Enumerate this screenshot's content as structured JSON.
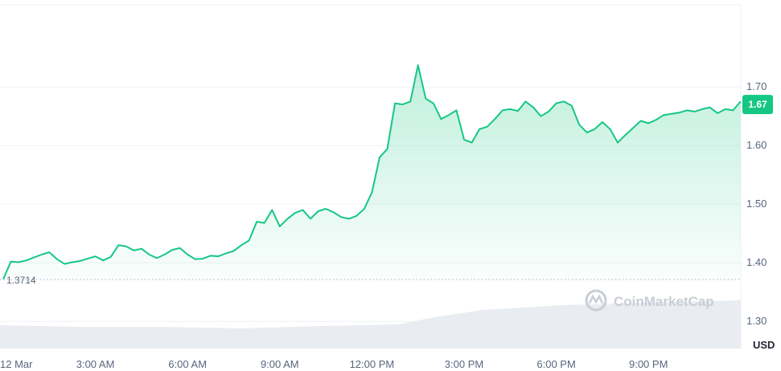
{
  "chart_data": {
    "type": "area",
    "title": "",
    "xlabel": "",
    "ylabel": "USD",
    "ylim": [
      1.24,
      1.8
    ],
    "grid": true,
    "y_ticks": [
      "1.70",
      "1.60",
      "1.50",
      "1.40",
      "1.30"
    ],
    "x_ticks": [
      "12 Mar",
      "3:00 AM",
      "6:00 AM",
      "9:00 AM",
      "12:00 PM",
      "3:00 PM",
      "6:00 PM",
      "9:00 PM"
    ],
    "baseline": {
      "value": 1.3714,
      "label": "1.3714"
    },
    "current_price": {
      "value": 1.67,
      "label": "1.67"
    },
    "series": [
      {
        "x_hours": [
          0,
          0.25,
          0.5,
          0.75,
          1,
          1.25,
          1.5,
          1.75,
          2,
          2.25,
          2.5,
          2.75,
          3,
          3.25,
          3.5,
          3.75,
          4,
          4.25,
          4.5,
          4.75,
          5,
          5.25,
          5.5,
          5.75,
          6,
          6.25,
          6.5,
          6.75,
          7,
          7.25,
          7.5,
          7.75,
          8,
          8.25,
          8.5,
          8.75,
          9,
          9.25,
          9.5,
          9.75,
          10,
          10.25,
          10.5,
          10.75,
          11,
          11.25,
          11.5,
          11.75,
          12,
          12.25,
          12.5,
          12.75,
          13,
          13.25,
          13.5,
          13.75,
          14,
          14.25,
          14.5,
          14.75,
          15,
          15.25,
          15.5,
          15.75,
          16,
          16.25,
          16.5,
          16.75,
          17,
          17.25,
          17.5,
          17.75,
          18,
          18.25,
          18.5,
          18.75,
          19,
          19.25,
          19.5,
          19.75,
          20,
          20.25,
          20.5,
          20.75,
          21,
          21.25,
          21.5,
          21.75,
          22,
          22.25,
          22.5,
          22.75,
          23,
          23.25,
          23.5,
          23.75,
          24
        ],
        "values": [
          1.372,
          1.402,
          1.401,
          1.404,
          1.409,
          1.414,
          1.418,
          1.406,
          1.398,
          1.401,
          1.403,
          1.407,
          1.411,
          1.404,
          1.41,
          1.43,
          1.428,
          1.421,
          1.424,
          1.414,
          1.408,
          1.414,
          1.422,
          1.425,
          1.414,
          1.406,
          1.407,
          1.412,
          1.411,
          1.416,
          1.42,
          1.43,
          1.438,
          1.47,
          1.468,
          1.49,
          1.462,
          1.475,
          1.485,
          1.49,
          1.475,
          1.488,
          1.492,
          1.486,
          1.478,
          1.475,
          1.48,
          1.492,
          1.52,
          1.58,
          1.594,
          1.672,
          1.67,
          1.675,
          1.737,
          1.68,
          1.672,
          1.645,
          1.652,
          1.66,
          1.61,
          1.605,
          1.628,
          1.632,
          1.645,
          1.66,
          1.662,
          1.659,
          1.675,
          1.665,
          1.65,
          1.658,
          1.672,
          1.675,
          1.668,
          1.635,
          1.622,
          1.628,
          1.64,
          1.628,
          1.605,
          1.618,
          1.63,
          1.642,
          1.638,
          1.644,
          1.652,
          1.654,
          1.656,
          1.66,
          1.658,
          1.662,
          1.665,
          1.655,
          1.662,
          1.66,
          1.675
        ],
        "volume_label": "24h volume (shaded)"
      }
    ]
  },
  "watermark": {
    "text": "CoinMarketCap",
    "icon": "cmc-logo-icon"
  },
  "colors": {
    "line": "#16c784",
    "badge": "#16c784",
    "grid": "#eff2f5",
    "volume": "#e9ecf1"
  }
}
